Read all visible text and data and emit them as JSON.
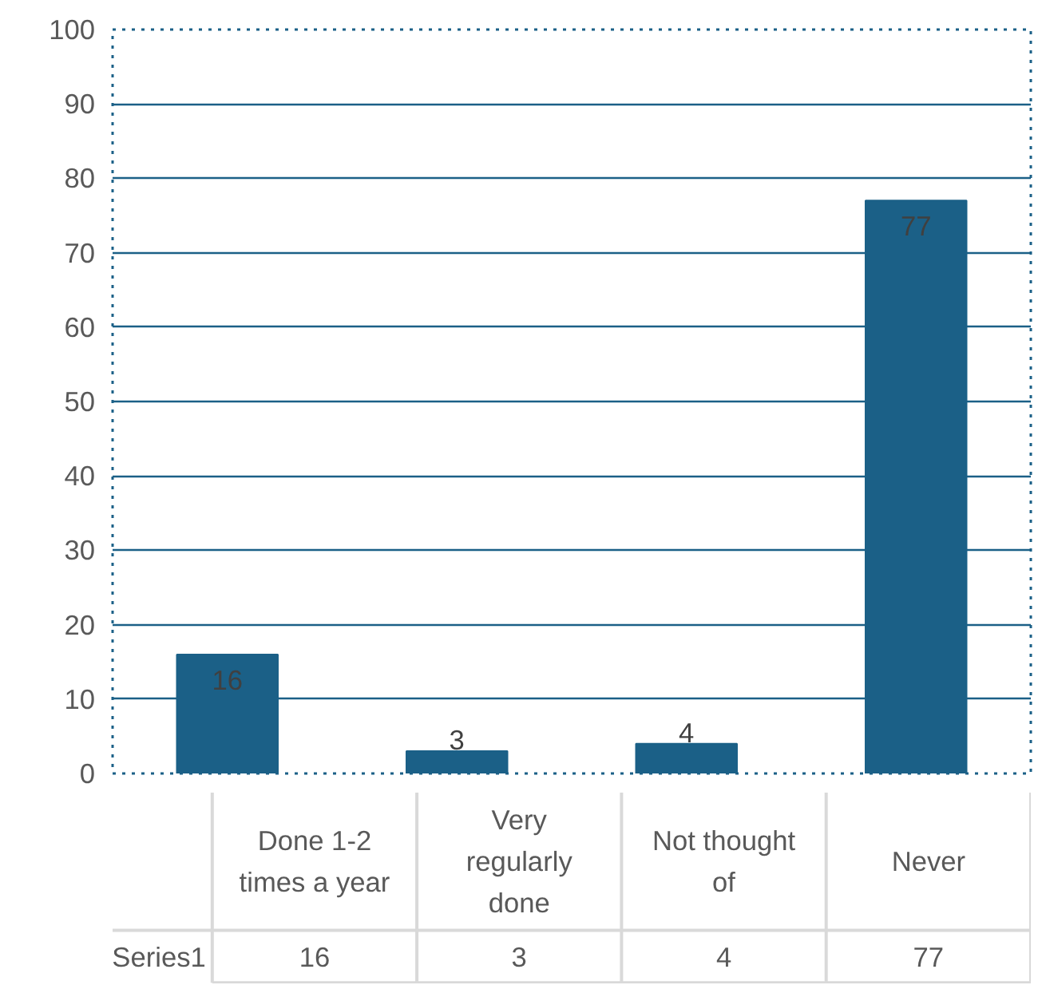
{
  "chart_data": {
    "type": "bar",
    "categories": [
      "Done 1-2 times a year",
      "Very regularly done",
      "Not thought of",
      "Never"
    ],
    "series": [
      {
        "name": "Series1",
        "color": "#1b6087",
        "values": [
          16,
          3,
          4,
          77
        ],
        "value_labels": [
          "16",
          "3",
          "4",
          "77"
        ]
      }
    ],
    "ylim": [
      0,
      100
    ],
    "yticks": [
      0,
      10,
      20,
      30,
      40,
      50,
      60,
      70,
      80,
      90,
      100
    ],
    "grid": "y",
    "data_labels": true
  }
}
